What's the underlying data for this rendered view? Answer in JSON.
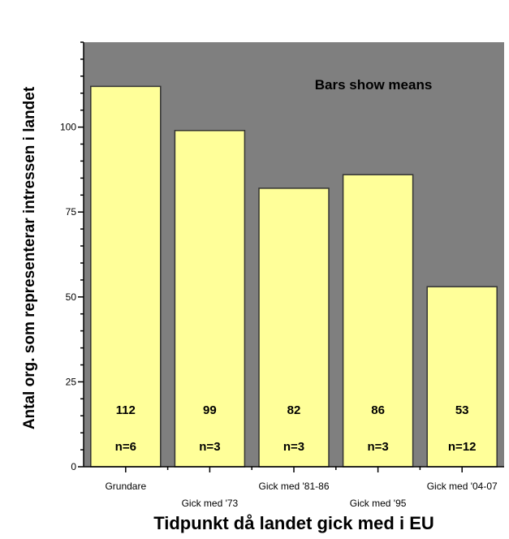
{
  "chart_data": {
    "type": "bar",
    "categories": [
      "Grundare",
      "Gick med '73",
      "Gick med '81-86",
      "Gick med '95",
      "Gick med '04-07"
    ],
    "values": [
      112,
      99,
      82,
      86,
      53
    ],
    "value_labels": [
      "112",
      "99",
      "82",
      "86",
      "53"
    ],
    "n_labels": [
      "n=6",
      "n=3",
      "n=3",
      "n=3",
      "n=12"
    ],
    "annotation": "Bars show means",
    "xlabel": "Tidpunkt då landet gick med i EU",
    "ylabel": "Antal org. som representerar intressen i landet",
    "ylim": [
      0,
      125
    ],
    "yticks": [
      0,
      25,
      50,
      75,
      100
    ],
    "ytick_labels": [
      "0",
      "25",
      "50",
      "75",
      "100"
    ],
    "grid": false,
    "colors": {
      "plot_background": "#7f7f7f",
      "bar_fill": "#ffff99",
      "bar_stroke": "#333333"
    }
  }
}
